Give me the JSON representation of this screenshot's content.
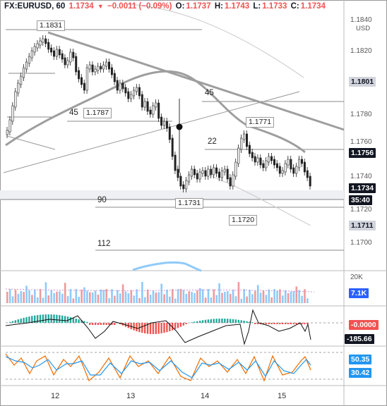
{
  "header": {
    "symbol": "FX:EURUSD, 60",
    "last": "1.1734",
    "change": "−0.0011 (−0.09%)",
    "o_label": "O:",
    "o": "1.1737",
    "h_label": "H:",
    "h": "1.1743",
    "l_label": "L:",
    "l": "1.1733",
    "c_label": "C:",
    "c": "1.1734"
  },
  "price_axis": {
    "currency": "USD",
    "ticks": [
      "1.1840",
      "1.1820",
      "1.1800",
      "1.1780",
      "1.1760",
      "1.1740",
      "1.1720",
      "1.1700"
    ],
    "tags": [
      {
        "text": "1.1801",
        "bg": "#d1d4dc",
        "fg": "#131722"
      },
      {
        "text": "1.1756",
        "bg": "#131722",
        "fg": "#ffffff"
      },
      {
        "text": "1.1734",
        "bg": "#131722",
        "fg": "#ffffff"
      },
      {
        "text": "35:40",
        "bg": "#131722",
        "fg": "#ffffff"
      },
      {
        "text": "1.1711",
        "bg": "#d1d4dc",
        "fg": "#131722"
      }
    ]
  },
  "annotations": {
    "high_1": "1.1831",
    "low_1": "1.1787",
    "high_2": "1.1771",
    "low_2": "1.1731",
    "low_3": "1.1720",
    "label_45a": "45",
    "label_45b": "45",
    "label_22": "22",
    "label_90": "90",
    "label_112": "112"
  },
  "volume_pane": {
    "axis_top": "20K",
    "tag": {
      "text": "7.1K",
      "bg": "#2962ff",
      "fg": "#ffffff"
    }
  },
  "macd_pane": {
    "tags": [
      {
        "text": "-0.0000",
        "bg": "#ef5350",
        "fg": "#ffffff"
      },
      {
        "text": "-185.66",
        "bg": "#131722",
        "fg": "#ffffff"
      }
    ]
  },
  "stoch_pane": {
    "tags": [
      {
        "text": "50.35",
        "bg": "#2196f3",
        "fg": "#ffffff"
      },
      {
        "text": "30.42",
        "bg": "#2196f3",
        "fg": "#ffffff"
      }
    ]
  },
  "time_axis": {
    "ticks": [
      "12",
      "13",
      "14",
      "15"
    ]
  },
  "colors": {
    "up": "#26a69a",
    "down": "#ef5350",
    "candle": "#222222",
    "trend": "#9e9e9e"
  }
}
